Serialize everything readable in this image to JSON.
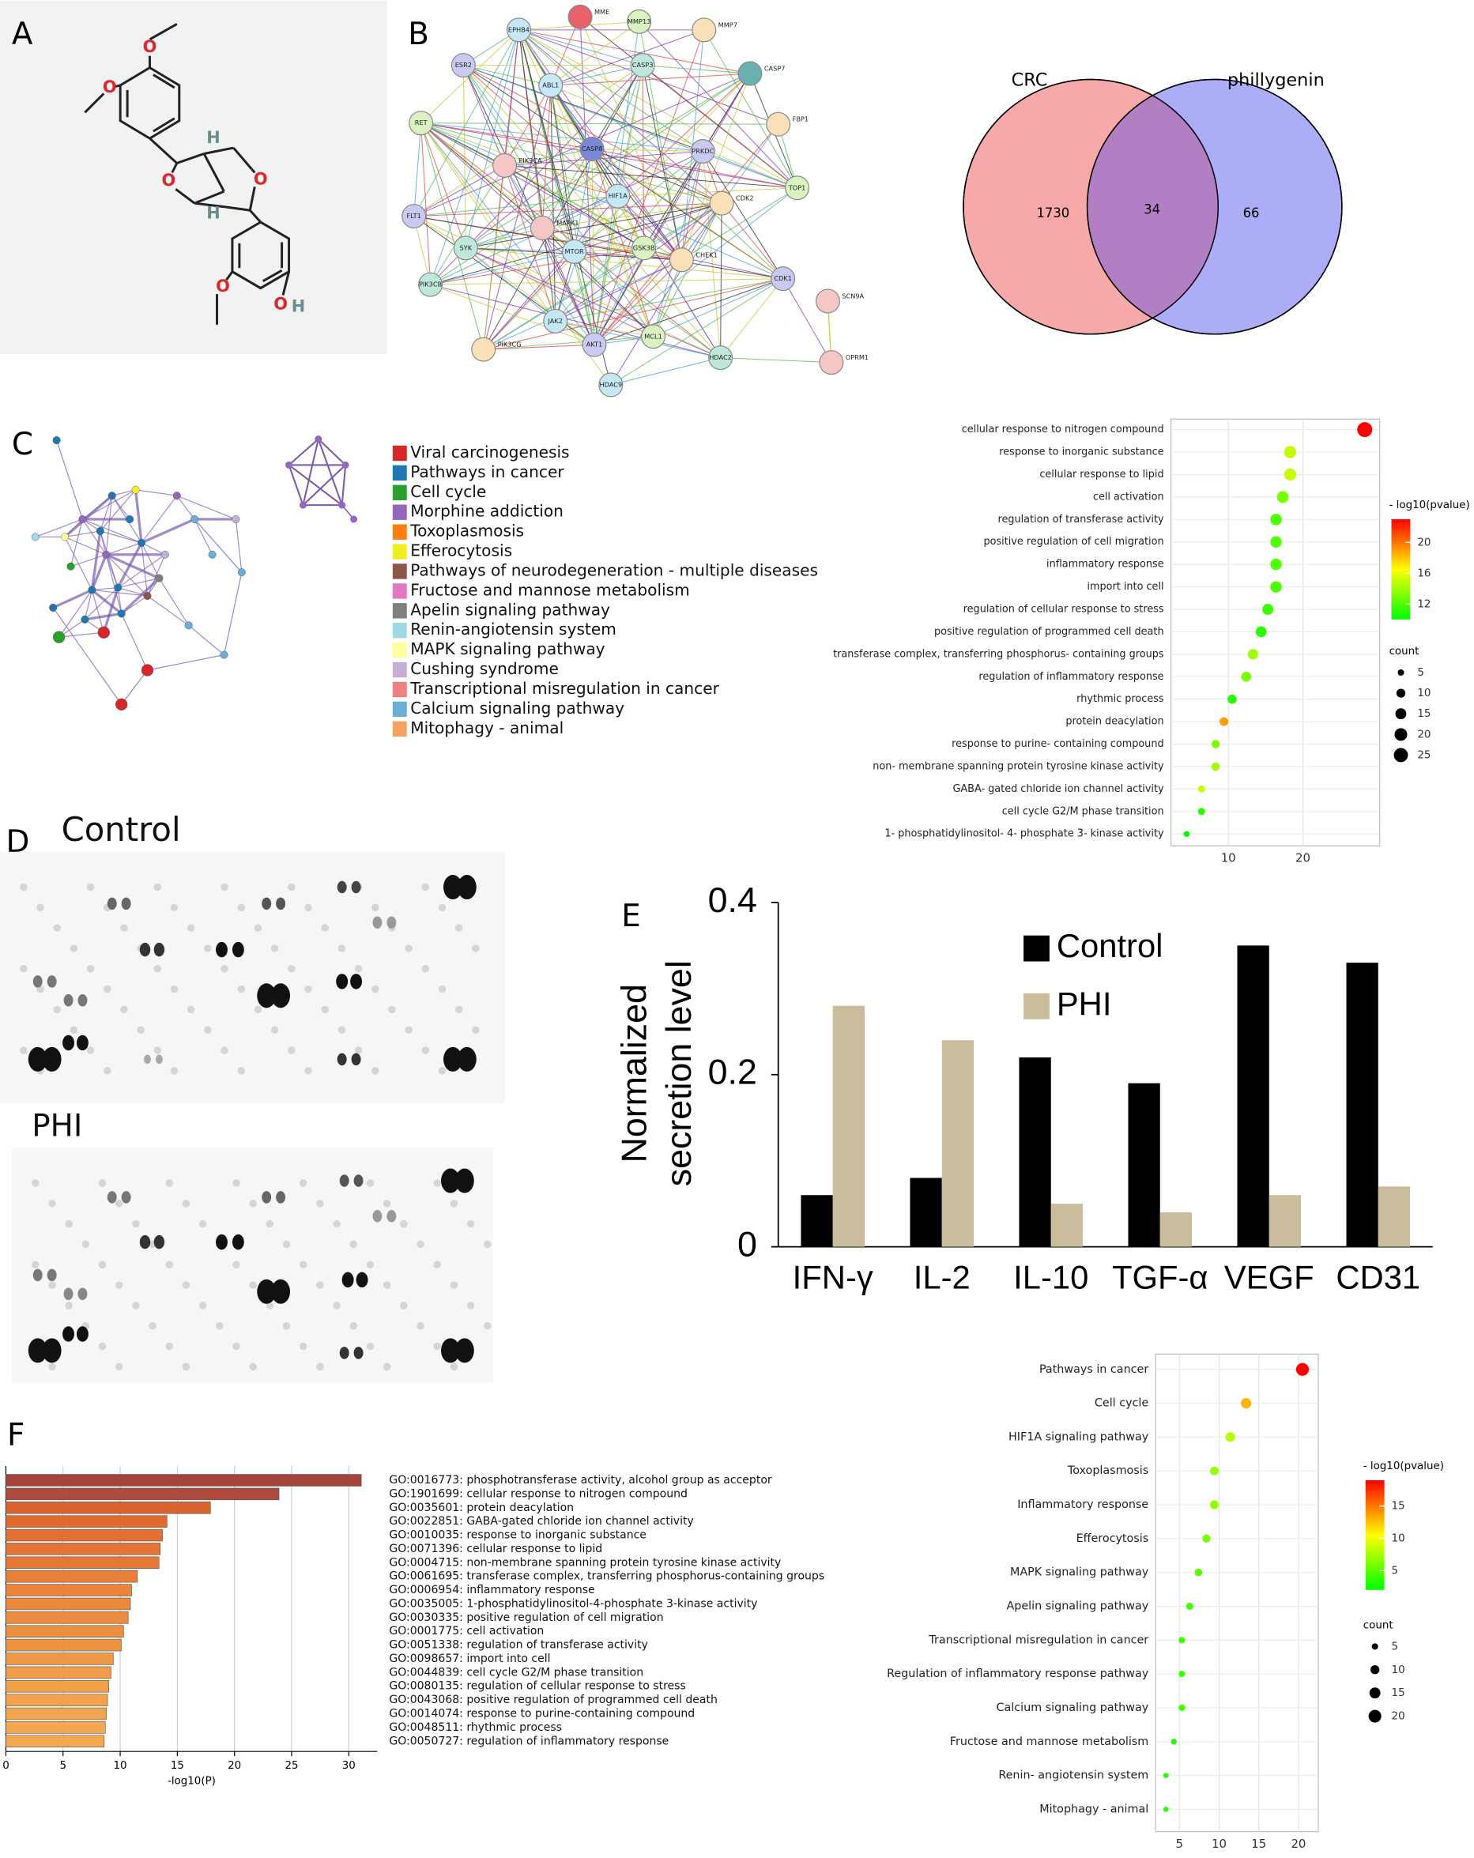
{
  "panels": [
    "A",
    "B",
    "C",
    "D",
    "E",
    "F"
  ],
  "molecule": {
    "atoms": [
      "O",
      "O",
      "O",
      "O",
      "H",
      "H",
      "O",
      "O",
      "H"
    ]
  },
  "network": {
    "nodes": [
      "MME",
      "EPHB4",
      "MMP13",
      "MMP7",
      "ESR2",
      "CASP3",
      "CASP7",
      "ABL1",
      "RET",
      "FBP1",
      "PRKDC",
      "CASP8",
      "PIK3CA",
      "HIF1A",
      "TOP1",
      "CDK2",
      "FLT1",
      "SYK",
      "MAPK1",
      "MTOR",
      "GSK3B",
      "CHEK1",
      "CDK1",
      "PIK3CB",
      "SCN9A",
      "JAK2",
      "MCL1",
      "PIK3CG",
      "AKT1",
      "HDAC2",
      "OPRM1",
      "HDAC9"
    ]
  },
  "pathway_network": {
    "legend": [
      {
        "label": "Viral carcinogenesis",
        "color": "#d62728"
      },
      {
        "label": "Pathways in cancer",
        "color": "#1f77b4"
      },
      {
        "label": "Cell cycle",
        "color": "#2ca02c"
      },
      {
        "label": "Morphine addiction",
        "color": "#9467bd"
      },
      {
        "label": "Toxoplasmosis",
        "color": "#ff7f0e"
      },
      {
        "label": "Efferocytosis",
        "color": "#f0f020"
      },
      {
        "label": "Pathways of neurodegeneration - multiple diseases",
        "color": "#8c564b"
      },
      {
        "label": "Fructose and mannose metabolism",
        "color": "#e377c2"
      },
      {
        "label": "Apelin signaling pathway",
        "color": "#7f7f7f"
      },
      {
        "label": "Renin-angiotensin system",
        "color": "#9edae5"
      },
      {
        "label": "MAPK signaling pathway",
        "color": "#ffffa0"
      },
      {
        "label": "Cushing syndrome",
        "color": "#c5b0d5"
      },
      {
        "label": "Transcriptional misregulation in cancer",
        "color": "#f08080"
      },
      {
        "label": "Calcium signaling pathway",
        "color": "#6baed6"
      },
      {
        "label": "Mitophagy - animal",
        "color": "#f4a460"
      }
    ]
  },
  "blot": {
    "conditions": [
      "Control",
      "PHI"
    ]
  },
  "chart_data": [
    {
      "type": "venn",
      "sets": [
        {
          "name": "CRC",
          "color": "#f7a8a8",
          "only": 1730
        },
        {
          "name": "phillygenin",
          "color": "#adadf7",
          "only": 66
        }
      ],
      "overlap": 34,
      "overlap_color": "#b27ec4"
    },
    {
      "type": "dot",
      "categories": [
        "cellular response to nitrogen compound",
        "response to inorganic substance",
        "cellular response to lipid",
        "cell activation",
        "regulation of transferase activity",
        "positive regulation of cell migration",
        "inflammatory response",
        "import into cell",
        "regulation of cellular response to stress",
        "positive regulation of programmed cell death",
        "transferase complex, transferring phosphorus- containing groups",
        "regulation of inflammatory response",
        "rhythmic process",
        "protein deacylation",
        "response to purine- containing compound",
        "non- membrane spanning protein tyrosine kinase activity",
        "GABA- gated chloride ion channel activity",
        "cell cycle G2/M phase transition",
        "1- phosphatidylinositol- 4- phosphate 3- kinase activity"
      ],
      "values": [
        28.3,
        18.3,
        18.3,
        17.3,
        16.4,
        16.4,
        16.4,
        16.4,
        15.3,
        14.4,
        13.3,
        12.4,
        10.5,
        9.4,
        8.3,
        8.3,
        6.4,
        6.4,
        4.4
      ],
      "pvalues": [
        23,
        15,
        15,
        13,
        12,
        12,
        12,
        12,
        11.5,
        11,
        14,
        13,
        11,
        19,
        13,
        14,
        15,
        11,
        10
      ],
      "xlim": [
        2.3,
        30.3
      ],
      "xticks": [
        10,
        20
      ],
      "color_title": "- log10(pvalue)",
      "color_range": [
        10,
        23
      ],
      "color_ticks": [
        12,
        16,
        20
      ],
      "colorscale": [
        "#00ff00",
        "#ffff00",
        "#ff0000"
      ],
      "size_title": "count",
      "size_ticks": [
        5,
        10,
        15,
        20,
        25
      ]
    },
    {
      "type": "bar",
      "categories": [
        "IFN-γ",
        "IL-2",
        "IL-10",
        "TGF-α",
        "VEGF",
        "CD31"
      ],
      "series": [
        {
          "name": "Control",
          "color": "#000000",
          "values": [
            0.06,
            0.08,
            0.22,
            0.19,
            0.35,
            0.33
          ]
        },
        {
          "name": "PHI",
          "color": "#c9bd9b",
          "values": [
            0.28,
            0.24,
            0.05,
            0.04,
            0.06,
            0.07
          ]
        }
      ],
      "ylim": [
        0,
        0.4
      ],
      "yticks": [
        0,
        0.2,
        0.4
      ],
      "ylabel": [
        "Normalized",
        "secretion level"
      ]
    },
    {
      "type": "hbar",
      "categories": [
        "GO:0016773: phosphotransferase activity, alcohol group as acceptor",
        "GO:1901699: cellular response to nitrogen compound",
        "GO:0035601: protein deacylation",
        "GO:0022851: GABA-gated chloride ion channel activity",
        "GO:0010035: response to inorganic substance",
        "GO:0071396: cellular response to lipid",
        "GO:0004715: non-membrane spanning protein tyrosine kinase activity",
        "GO:0061695: transferase complex, transferring phosphorus-containing groups",
        "GO:0006954: inflammatory response",
        "GO:0035005: 1-phosphatidylinositol-4-phosphate 3-kinase activity",
        "GO:0030335: positive regulation of cell migration",
        "GO:0001775: cell activation",
        "GO:0051338: regulation of transferase activity",
        "GO:0098657: import into cell",
        "GO:0044839: cell cycle G2/M phase transition",
        "GO:0080135: regulation of cellular response to stress",
        "GO:0043068: positive regulation of programmed cell death",
        "GO:0014074: response to purine-containing compound",
        "GO:0048511: rhythmic process",
        "GO:0050727: regulation of inflammatory response"
      ],
      "values": [
        31.1,
        23.9,
        17.9,
        14.1,
        13.7,
        13.5,
        13.4,
        11.5,
        11.0,
        10.9,
        10.7,
        10.3,
        10.1,
        9.4,
        9.2,
        9.0,
        8.9,
        8.8,
        8.7,
        8.6
      ],
      "colors": [
        "#a5443c",
        "#ad4a3d",
        "#d9642f",
        "#e06a30",
        "#e27032",
        "#e37434",
        "#e47836",
        "#e88038",
        "#e9843a",
        "#ea883c",
        "#eb8c3e",
        "#ec9040",
        "#ed9442",
        "#ef9846",
        "#f09c48",
        "#f1a04a",
        "#f2a24c",
        "#f3a44e",
        "#f4a650",
        "#f5a852"
      ],
      "xlim": [
        0,
        32.5
      ],
      "xticks": [
        0,
        5,
        10,
        15,
        20,
        25,
        30
      ],
      "xlabel": "-log10(P)",
      "grid": true
    },
    {
      "type": "dot",
      "categories": [
        "Pathways in cancer",
        "Cell cycle",
        "HIF1A signaling pathway",
        "Toxoplasmosis",
        "Inflammatory response",
        "Efferocytosis",
        "MAPK signaling pathway",
        "Apelin signaling pathway",
        "Transcriptional misregulation in cancer",
        "Regulation of inflammatory response pathway",
        "Calcium signaling pathway",
        "Fructose and mannose metabolism",
        "Renin- angiotensin system",
        "Mitophagy -  animal"
      ],
      "values": [
        20.5,
        13.4,
        11.4,
        9.4,
        9.4,
        8.4,
        7.4,
        6.3,
        5.3,
        5.3,
        5.3,
        4.3,
        3.3,
        3.3
      ],
      "pvalues": [
        19,
        13,
        8,
        7,
        7,
        6,
        5,
        4,
        4,
        4,
        4,
        3,
        3,
        3
      ],
      "xlim": [
        2,
        22.5
      ],
      "xticks": [
        5,
        10,
        15,
        20
      ],
      "color_title": "- log10(pvalue)",
      "color_range": [
        2,
        19
      ],
      "color_ticks": [
        5,
        10,
        15
      ],
      "colorscale": [
        "#00ff00",
        "#ffff00",
        "#ff0000"
      ],
      "size_title": "count",
      "size_ticks": [
        5,
        10,
        15,
        20
      ]
    }
  ]
}
